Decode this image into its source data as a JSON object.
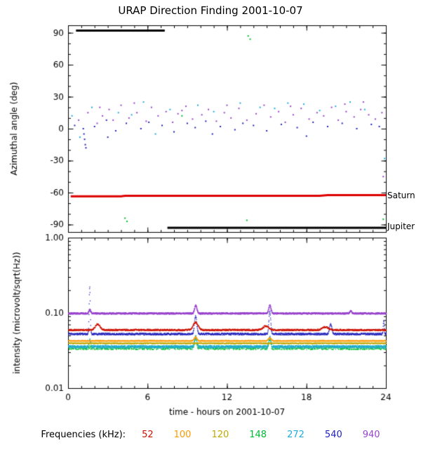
{
  "page": {
    "title": "URAP Direction Finding  2001-10-07"
  },
  "legend": {
    "label": "Frequencies (kHz):",
    "items": [
      {
        "freq": "52",
        "color": "#cc1100"
      },
      {
        "freq": "100",
        "color": "#ff9900"
      },
      {
        "freq": "120",
        "color": "#bfa800"
      },
      {
        "freq": "148",
        "color": "#00bb33"
      },
      {
        "freq": "272",
        "color": "#22aadd"
      },
      {
        "freq": "540",
        "color": "#2222bb"
      },
      {
        "freq": "940",
        "color": "#9944cc"
      }
    ]
  },
  "annotations": {
    "saturn": "Saturn",
    "jupiter": "Jupiter"
  },
  "chart_data": [
    {
      "type": "scatter",
      "title": "URAP Direction Finding  2001-10-07",
      "ylabel": "Azimuthal angle (deg)",
      "ylim": [
        -97,
        97
      ],
      "yticks": [
        90,
        60,
        30,
        0,
        -30,
        -60,
        -90
      ],
      "ytick_labels": [
        "90",
        "60",
        "30",
        "0",
        "-30",
        "-60",
        "-90"
      ],
      "xlim": [
        0,
        24
      ],
      "xticks": [
        0,
        6,
        12,
        18,
        24
      ],
      "grid": false,
      "lines": [
        {
          "name": "black-segment-90deg",
          "color": "#000000",
          "width": 3,
          "points": [
            [
              0.6,
              92
            ],
            [
              7.3,
              92
            ]
          ]
        },
        {
          "name": "saturn-direction",
          "color": "#dd0000",
          "width": 3,
          "points": [
            [
              0.2,
              -63.5
            ],
            [
              4.0,
              -63.5
            ],
            [
              4.3,
              -63.0
            ],
            [
              19.0,
              -63.0
            ],
            [
              19.6,
              -62.3
            ],
            [
              24,
              -62.3
            ]
          ]
        },
        {
          "name": "jupiter-direction",
          "color": "#000000",
          "width": 3,
          "points": [
            [
              7.5,
              -93
            ],
            [
              24,
              -93
            ]
          ]
        }
      ],
      "series": [
        {
          "freq": "940",
          "color": "#9944cc",
          "points": [
            [
              0.8,
              8
            ],
            [
              1.5,
              15
            ],
            [
              2.2,
              5
            ],
            [
              2.4,
              20
            ],
            [
              2.6,
              12
            ],
            [
              3.1,
              18
            ],
            [
              3.4,
              8
            ],
            [
              4.0,
              22
            ],
            [
              4.6,
              10
            ],
            [
              5.0,
              24
            ],
            [
              5.2,
              15
            ],
            [
              5.9,
              7
            ],
            [
              6.3,
              20
            ],
            [
              6.8,
              12
            ],
            [
              7.4,
              16
            ],
            [
              7.9,
              6
            ],
            [
              8.3,
              14
            ],
            [
              8.6,
              17
            ],
            [
              8.9,
              21
            ],
            [
              9.4,
              9
            ],
            [
              10.1,
              13
            ],
            [
              10.6,
              18
            ],
            [
              11.2,
              7
            ],
            [
              11.8,
              15
            ],
            [
              12.0,
              22
            ],
            [
              12.3,
              10
            ],
            [
              12.9,
              19
            ],
            [
              13.5,
              8
            ],
            [
              14.2,
              14
            ],
            [
              14.8,
              22
            ],
            [
              15.3,
              11
            ],
            [
              15.9,
              16
            ],
            [
              16.4,
              6
            ],
            [
              16.8,
              21
            ],
            [
              17.0,
              13
            ],
            [
              17.6,
              19
            ],
            [
              18.2,
              9
            ],
            [
              18.8,
              15
            ],
            [
              19.3,
              12
            ],
            [
              19.9,
              20
            ],
            [
              20.4,
              8
            ],
            [
              20.9,
              23
            ],
            [
              21.0,
              16
            ],
            [
              21.6,
              11
            ],
            [
              22.1,
              18
            ],
            [
              22.3,
              25
            ],
            [
              22.7,
              13
            ],
            [
              23.2,
              9
            ],
            [
              23.7,
              15
            ],
            [
              23.8,
              -45
            ]
          ]
        },
        {
          "freq": "540",
          "color": "#2222bb",
          "points": [
            [
              0.5,
              3
            ],
            [
              1.15,
              0
            ],
            [
              1.2,
              -5
            ],
            [
              1.25,
              -10
            ],
            [
              1.3,
              -15
            ],
            [
              1.35,
              -18
            ],
            [
              2.0,
              2
            ],
            [
              2.9,
              8
            ],
            [
              3.0,
              -8
            ],
            [
              3.6,
              -2
            ],
            [
              4.4,
              5
            ],
            [
              5.5,
              0
            ],
            [
              6.1,
              6
            ],
            [
              7.1,
              3
            ],
            [
              8.0,
              -3
            ],
            [
              9.0,
              5
            ],
            [
              9.6,
              1
            ],
            [
              10.4,
              7
            ],
            [
              10.9,
              -5
            ],
            [
              11.5,
              2
            ],
            [
              12.6,
              -1
            ],
            [
              13.2,
              5
            ],
            [
              14.0,
              3
            ],
            [
              15.0,
              -2
            ],
            [
              16.1,
              4
            ],
            [
              17.3,
              1
            ],
            [
              18.0,
              -7
            ],
            [
              18.5,
              6
            ],
            [
              19.6,
              2
            ],
            [
              20.7,
              5
            ],
            [
              21.8,
              0
            ],
            [
              22.9,
              4
            ],
            [
              23.5,
              2
            ]
          ]
        },
        {
          "freq": "272",
          "color": "#22aadd",
          "points": [
            [
              0.3,
              12
            ],
            [
              0.9,
              -8
            ],
            [
              1.8,
              20
            ],
            [
              3.8,
              15
            ],
            [
              4.8,
              13
            ],
            [
              5.7,
              25
            ],
            [
              6.6,
              -5
            ],
            [
              7.7,
              18
            ],
            [
              9.8,
              22
            ],
            [
              11.0,
              16
            ],
            [
              13.0,
              24
            ],
            [
              14.5,
              20
            ],
            [
              15.6,
              19
            ],
            [
              16.6,
              24
            ],
            [
              17.8,
              23
            ],
            [
              19.0,
              17
            ],
            [
              20.2,
              21
            ],
            [
              21.3,
              25
            ],
            [
              22.4,
              18
            ],
            [
              23.9,
              -28
            ]
          ]
        },
        {
          "freq": "148",
          "color": "#00bb33",
          "points": [
            [
              4.3,
              -84
            ],
            [
              4.45,
              -87
            ],
            [
              8.6,
              12
            ],
            [
              13.5,
              -86
            ],
            [
              13.6,
              87
            ],
            [
              13.75,
              84
            ],
            [
              23.8,
              -85
            ]
          ]
        }
      ]
    },
    {
      "type": "line",
      "ylabel": "intensity (microvolt/sqrt(Hz))",
      "xlabel": "time - hours on 2001-10-07",
      "yscale": "log",
      "ylim": [
        0.01,
        1.0
      ],
      "yticks": [
        1.0,
        0.1,
        0.01
      ],
      "ytick_labels": [
        "1.00",
        "0.10",
        "0.01"
      ],
      "xlim": [
        0,
        24
      ],
      "xticks": [
        0,
        6,
        12,
        18,
        24
      ],
      "xtick_labels": [
        "0",
        "6",
        "12",
        "18",
        "24"
      ],
      "grid": false,
      "series": [
        {
          "freq": "148",
          "color": "#00bb33",
          "baseline": 0.035,
          "noise": 0.06,
          "spikes": [
            [
              9.6,
              0.047,
              0.1
            ],
            [
              15.2,
              0.046,
              0.1
            ]
          ]
        },
        {
          "freq": "272",
          "color": "#22aadd",
          "baseline": 0.036,
          "noise": 0.04,
          "spikes": [
            [
              1.6,
              0.045,
              0.08
            ],
            [
              9.6,
              0.05,
              0.12
            ],
            [
              15.2,
              0.05,
              0.1
            ]
          ]
        },
        {
          "freq": "120",
          "color": "#bfa800",
          "baseline": 0.04,
          "noise": 0.015,
          "spikes": []
        },
        {
          "freq": "100",
          "color": "#ff9900",
          "baseline": 0.043,
          "noise": 0.015,
          "spikes": [
            [
              9.6,
              0.048,
              0.15
            ],
            [
              15.2,
              0.047,
              0.15
            ]
          ]
        },
        {
          "freq": "540",
          "color": "#2222bb",
          "baseline": 0.053,
          "noise": 0.03,
          "spikes": [
            [
              1.6,
              0.22,
              0.06
            ],
            [
              9.6,
              0.092,
              0.12
            ],
            [
              15.2,
              0.105,
              0.1
            ],
            [
              19.8,
              0.072,
              0.12
            ],
            [
              23.8,
              0.08,
              0.05
            ]
          ]
        },
        {
          "freq": "52",
          "color": "#cc1100",
          "baseline": 0.06,
          "noise": 0.025,
          "spikes": [
            [
              2.2,
              0.072,
              0.25
            ],
            [
              9.6,
              0.076,
              0.25
            ],
            [
              14.9,
              0.068,
              0.3
            ],
            [
              19.4,
              0.066,
              0.3
            ]
          ]
        },
        {
          "freq": "940",
          "color": "#9944cc",
          "baseline": 0.1,
          "noise": 0.02,
          "spikes": [
            [
              1.6,
              0.112,
              0.1
            ],
            [
              9.6,
              0.128,
              0.12
            ],
            [
              15.2,
              0.127,
              0.12
            ],
            [
              21.3,
              0.108,
              0.1
            ]
          ]
        }
      ]
    }
  ]
}
